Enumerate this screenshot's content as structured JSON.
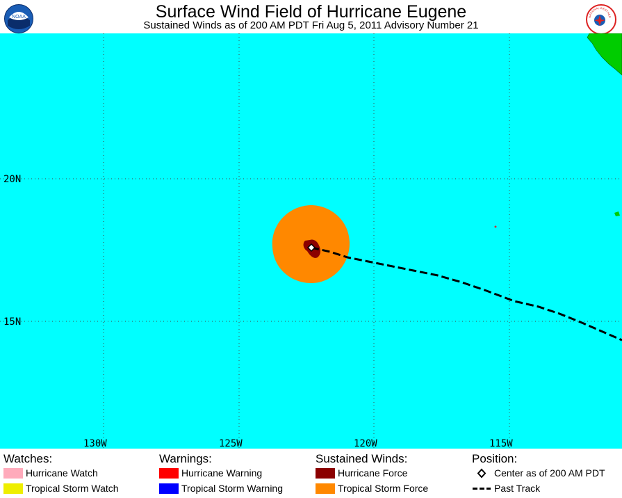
{
  "header": {
    "title": "Surface Wind Field of Hurricane Eugene",
    "subtitle": "Sustained Winds as of 200 AM PDT Fri Aug 5, 2011     Advisory Number 21",
    "logo_left_icon": "noaa-logo-icon",
    "logo_left_text": "NOAA",
    "logo_right_icon": "nws-logo-icon",
    "logo_right_text": "NATIONAL WEATHER SERVICE"
  },
  "map": {
    "ocean_color": "#00ffff",
    "land_color": "#00cc00",
    "grid_lat_labels": [
      "20N",
      "15N"
    ],
    "grid_lon_labels": [
      "130W",
      "125W",
      "120W",
      "115W"
    ],
    "tropical_storm_force_color": "#ff8800",
    "hurricane_force_color": "#8b0000"
  },
  "legend": {
    "watches": {
      "heading": "Watches:",
      "items": [
        {
          "label": "Hurricane Watch",
          "color": "#ffaabb"
        },
        {
          "label": "Tropical Storm Watch",
          "color": "#eeee00"
        }
      ]
    },
    "warnings": {
      "heading": "Warnings:",
      "items": [
        {
          "label": "Hurricane Warning",
          "color": "#ff0000"
        },
        {
          "label": "Tropical Storm Warning",
          "color": "#0000ff"
        }
      ]
    },
    "sustained_winds": {
      "heading": "Sustained Winds:",
      "items": [
        {
          "label": "Hurricane Force",
          "color": "#8b0000"
        },
        {
          "label": "Tropical Storm Force",
          "color": "#ff8800"
        }
      ]
    },
    "position": {
      "heading": "Position:",
      "center_label": "Center as of 200 AM PDT",
      "track_label": "Past Track"
    }
  }
}
